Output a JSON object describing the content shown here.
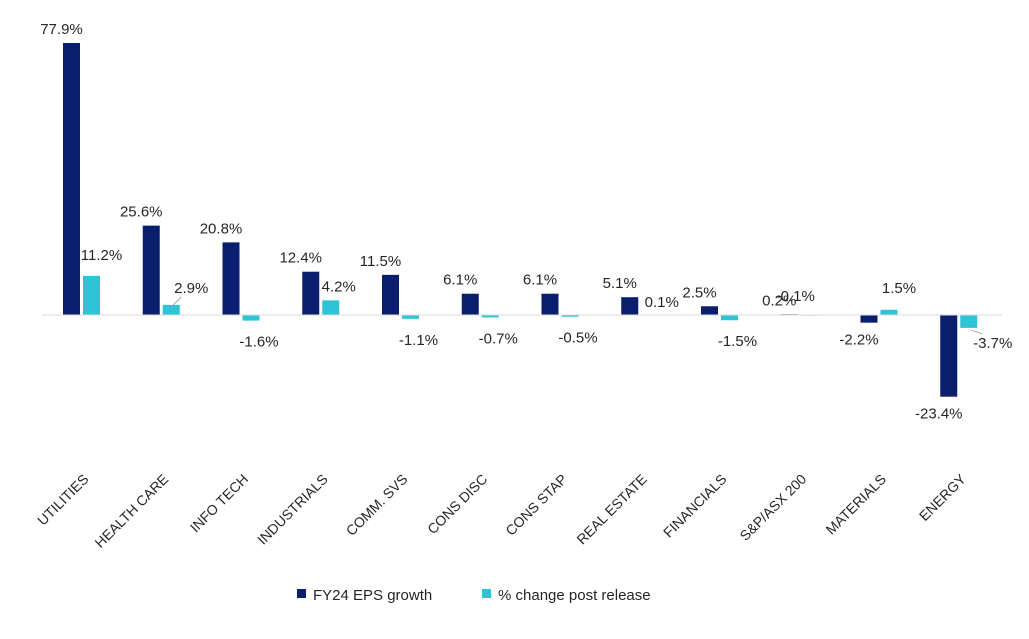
{
  "chart_data": {
    "type": "bar",
    "categories": [
      "UTILITIES",
      "HEALTH CARE",
      "INFO TECH",
      "INDUSTRIALS",
      "COMM. SVS",
      "CONS DISC",
      "CONS STAP",
      "REAL ESTATE",
      "FINANCIALS",
      "S&P/ASX 200",
      "MATERIALS",
      "ENERGY"
    ],
    "series": [
      {
        "name": "FY24 EPS growth",
        "color": "#0a1e6e",
        "values": [
          77.9,
          25.6,
          20.8,
          12.4,
          11.5,
          6.1,
          6.1,
          5.1,
          2.5,
          0.2,
          -2.2,
          -23.4
        ],
        "labels": [
          "77.9%",
          "25.6%",
          "20.8%",
          "12.4%",
          "11.5%",
          "6.1%",
          "6.1%",
          "5.1%",
          "2.5%",
          "0.2%",
          "-2.2%",
          "-23.4%"
        ]
      },
      {
        "name": "% change post release",
        "color": "#2ec4d6",
        "values": [
          11.2,
          2.9,
          -1.6,
          4.2,
          -1.1,
          -0.7,
          -0.5,
          0.1,
          -1.5,
          -0.1,
          1.5,
          -3.7
        ],
        "labels": [
          "11.2%",
          "2.9%",
          "-1.6%",
          "4.2%",
          "-1.1%",
          "-0.7%",
          "-0.5%",
          "0.1%",
          "-1.5%",
          "-0.1%",
          "1.5%",
          "-3.7%"
        ]
      }
    ],
    "legend": "bottom",
    "grid": false
  }
}
